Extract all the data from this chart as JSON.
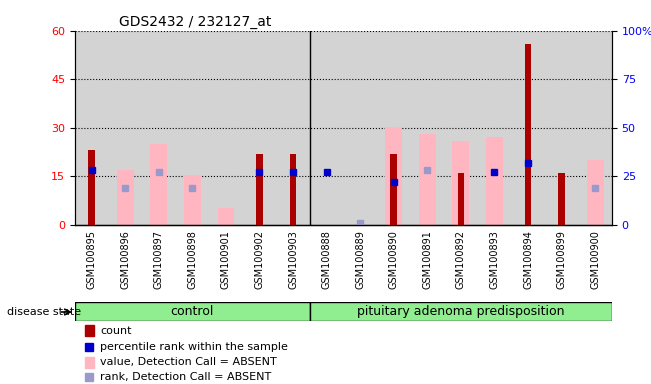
{
  "title": "GDS2432 / 232127_at",
  "samples": [
    "GSM100895",
    "GSM100896",
    "GSM100897",
    "GSM100898",
    "GSM100901",
    "GSM100902",
    "GSM100903",
    "GSM100888",
    "GSM100889",
    "GSM100890",
    "GSM100891",
    "GSM100892",
    "GSM100893",
    "GSM100894",
    "GSM100899",
    "GSM100900"
  ],
  "count": [
    23,
    null,
    null,
    null,
    null,
    22,
    22,
    null,
    null,
    22,
    null,
    16,
    null,
    56,
    16,
    null
  ],
  "percentile_rank": [
    28,
    null,
    null,
    null,
    null,
    27,
    27,
    27,
    null,
    22,
    null,
    null,
    27,
    32,
    null,
    null
  ],
  "value_absent": [
    null,
    17,
    25,
    15,
    5,
    null,
    null,
    null,
    null,
    30,
    28,
    26,
    27,
    null,
    null,
    20
  ],
  "rank_absent": [
    null,
    19,
    27,
    19,
    null,
    null,
    null,
    null,
    1,
    null,
    28,
    null,
    null,
    null,
    null,
    19
  ],
  "n_control": 7,
  "n_total": 16,
  "ylim_left": [
    0,
    60
  ],
  "ylim_right": [
    0,
    100
  ],
  "yticks_left": [
    0,
    15,
    30,
    45,
    60
  ],
  "yticks_right": [
    0,
    25,
    50,
    75,
    100
  ],
  "bar_color_count": "#aa0000",
  "bar_color_absent_value": "#FFB6C1",
  "square_color_rank": "#0000cc",
  "square_color_rank_absent": "#9999cc",
  "group_color": "#90EE90",
  "plot_bg": "#d3d3d3",
  "group_bar_color": "#90EE90"
}
